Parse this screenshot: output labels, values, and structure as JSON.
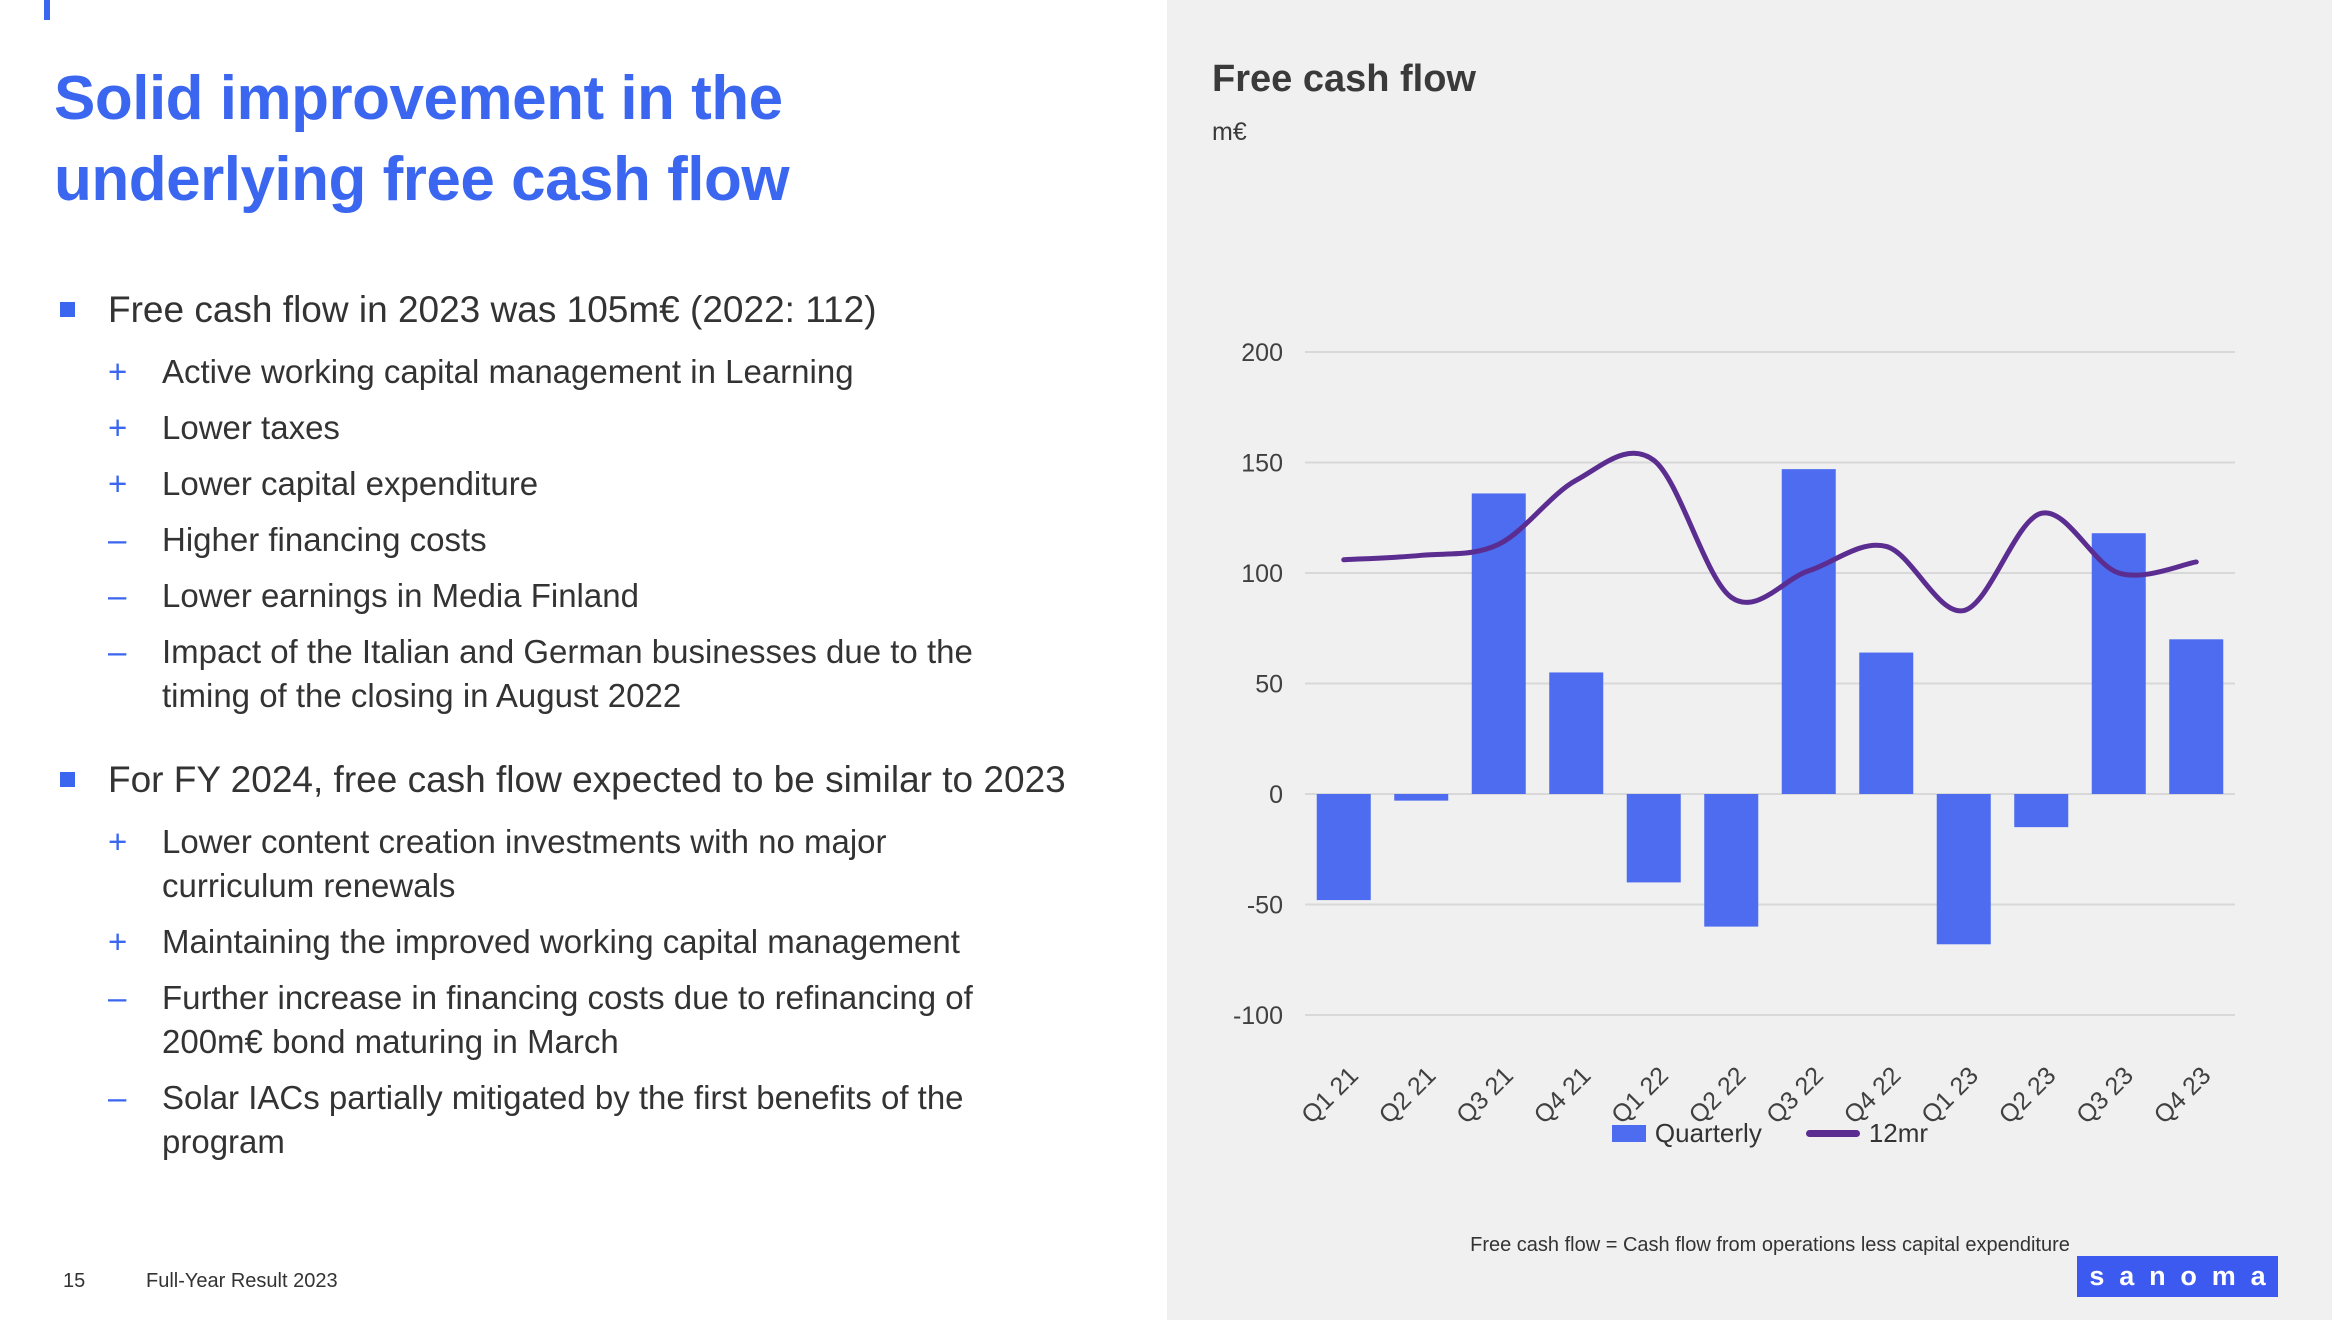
{
  "slide": {
    "title": "Solid improvement in the underlying free cash flow",
    "page_number": "15",
    "footer": "Full-Year Result 2023"
  },
  "bullets": [
    {
      "text": "Free cash flow in 2023 was 105m€ (2022: 112)",
      "subs": [
        {
          "sign": "+",
          "text": "Active working capital management in Learning"
        },
        {
          "sign": "+",
          "text": "Lower taxes"
        },
        {
          "sign": "+",
          "text": "Lower capital expenditure"
        },
        {
          "sign": "–",
          "text": "Higher financing costs"
        },
        {
          "sign": "–",
          "text": "Lower earnings in Media Finland"
        },
        {
          "sign": "–",
          "text": "Impact of the Italian and German businesses due to the timing of the closing in August 2022"
        }
      ]
    },
    {
      "text": "For FY 2024, free cash flow expected to be similar to 2023",
      "subs": [
        {
          "sign": "+",
          "text": "Lower content creation investments with no major curriculum renewals"
        },
        {
          "sign": "+",
          "text": "Maintaining the improved working capital management"
        },
        {
          "sign": "–",
          "text": "Further increase in financing costs due to refinancing of 200m€ bond maturing in March"
        },
        {
          "sign": "–",
          "text": "Solar IACs partially mitigated by the first benefits of the program"
        }
      ]
    }
  ],
  "chart": {
    "title": "Free cash flow",
    "unit": "m€",
    "footnote": "Free cash flow = Cash flow from operations less capital expenditure",
    "colors": {
      "bar": "#4d6cf0",
      "line": "#5b2d90",
      "grid": "#d8d8d8"
    }
  },
  "chart_data": {
    "type": "bar",
    "title": "Free cash flow",
    "ylabel": "m€",
    "categories": [
      "Q1 21",
      "Q2 21",
      "Q3 21",
      "Q4 21",
      "Q1 22",
      "Q2 22",
      "Q3 22",
      "Q4 22",
      "Q1 23",
      "Q2 23",
      "Q3 23",
      "Q4 23"
    ],
    "series": [
      {
        "name": "Quarterly",
        "type": "bar",
        "values": [
          -48,
          -3,
          136,
          55,
          -40,
          -60,
          147,
          64,
          -68,
          -15,
          118,
          70
        ]
      },
      {
        "name": "12mr",
        "type": "line",
        "values": [
          106,
          108,
          113,
          142,
          151,
          89,
          101,
          112,
          83,
          127,
          100,
          105
        ]
      }
    ],
    "ylim": [
      -100,
      200
    ],
    "yticks": [
      -100,
      -50,
      0,
      50,
      100,
      150,
      200
    ],
    "grid": true,
    "legend_position": "bottom"
  },
  "logo": {
    "text": "sanoma"
  }
}
